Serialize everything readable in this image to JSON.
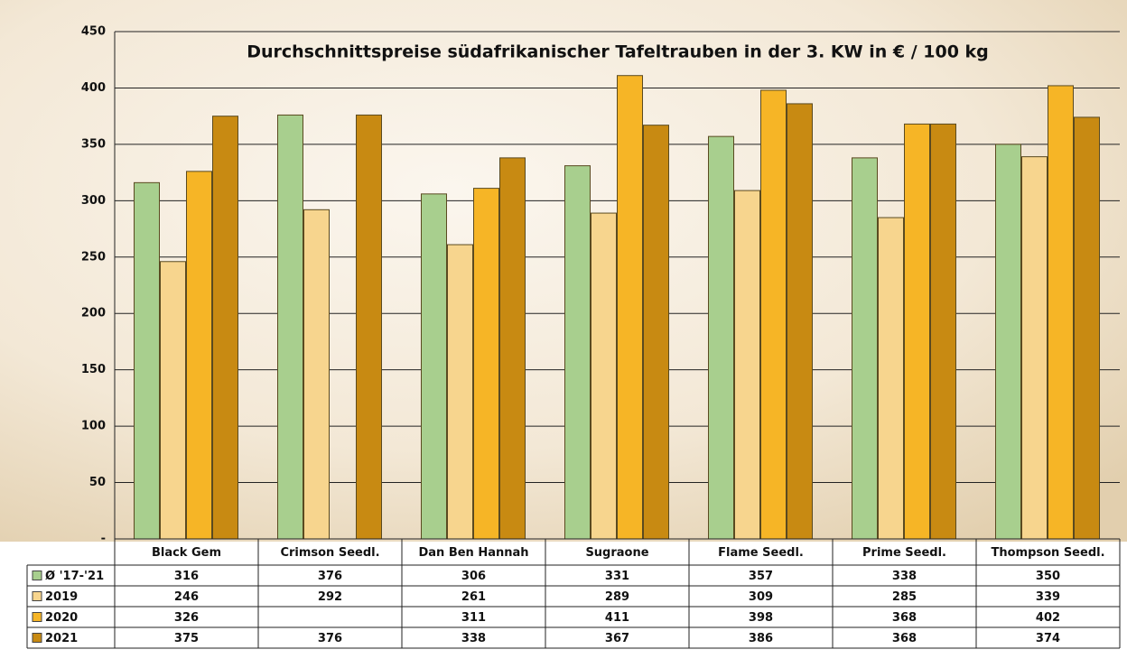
{
  "chart_data": {
    "type": "bar",
    "title": "Durchschnittspreise südafrikanischer Tafeltrauben in der 3. KW in € / 100 kg",
    "categories": [
      "Black Gem",
      "Crimson Seedl.",
      "Dan Ben Hannah",
      "Sugraone",
      "Flame Seedl.",
      "Prime Seedl.",
      "Thompson Seedl."
    ],
    "series": [
      {
        "name": "Ø '17-'21",
        "color": "#a8cf8e",
        "values": [
          316,
          376,
          306,
          331,
          357,
          338,
          350
        ]
      },
      {
        "name": "2019",
        "color": "#f7d58e",
        "values": [
          246,
          292,
          261,
          289,
          309,
          285,
          339
        ]
      },
      {
        "name": "2020",
        "color": "#f6b526",
        "values": [
          326,
          null,
          311,
          411,
          398,
          368,
          402
        ]
      },
      {
        "name": "2021",
        "color": "#c88a12",
        "values": [
          375,
          376,
          338,
          367,
          386,
          368,
          374
        ]
      }
    ],
    "ylim": [
      0,
      450
    ],
    "yticks": [
      {
        "value": 0,
        "label": "-"
      },
      50,
      100,
      150,
      200,
      250,
      300,
      350,
      400,
      450
    ],
    "grid": true
  }
}
